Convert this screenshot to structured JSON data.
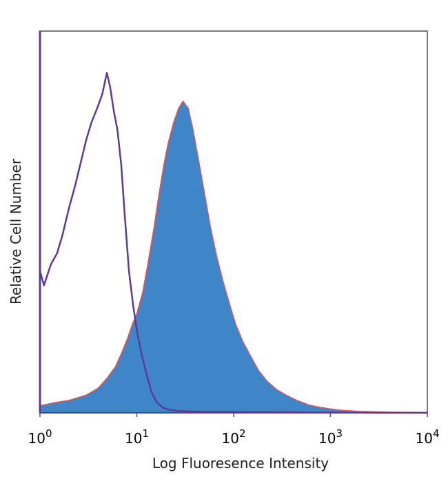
{
  "chart_data": {
    "type": "area",
    "title": "",
    "xlabel": "Log Fluoresence Intensity",
    "ylabel": "Relative Cell Number",
    "x_scale": "log",
    "xlim": [
      1,
      10000
    ],
    "ylim": [
      0,
      100
    ],
    "grid": false,
    "x_ticks": [
      {
        "value": 1,
        "base": "10",
        "exp": "0"
      },
      {
        "value": 10,
        "base": "10",
        "exp": "1"
      },
      {
        "value": 100,
        "base": "10",
        "exp": "2"
      },
      {
        "value": 1000,
        "base": "10",
        "exp": "3"
      },
      {
        "value": 10000,
        "base": "10",
        "exp": "4"
      }
    ],
    "colors": {
      "filled_fill": "#3f86c8",
      "filled_edge": "#e0535a",
      "outline": "#5b3a9a"
    },
    "series": [
      {
        "style": "outline",
        "color": "#5b3a9a",
        "x": [
          1.0,
          1.1,
          1.3,
          1.5,
          1.7,
          2.0,
          2.3,
          2.6,
          3.0,
          3.4,
          3.9,
          4.4,
          4.9,
          5.3,
          5.8,
          6.3,
          6.9,
          7.5,
          8.3,
          9.2,
          10.2,
          11.3,
          12.6,
          14.1,
          16.0,
          18.5,
          22,
          27,
          35,
          50,
          80,
          150,
          300,
          600,
          1200,
          3000,
          10000
        ],
        "y": [
          40,
          36,
          42,
          45,
          50,
          58,
          64,
          70,
          77,
          82,
          86,
          90,
          96,
          92,
          85,
          80,
          70,
          56,
          40,
          30,
          22,
          16,
          11,
          6,
          3,
          1.5,
          0.8,
          0.5,
          0.4,
          0.3,
          0.3,
          0.2,
          0.2,
          0.1,
          0.1,
          0,
          0
        ]
      },
      {
        "style": "filled",
        "color": "#3f86c8",
        "x": [
          1.0,
          1.5,
          2.0,
          3.0,
          4.0,
          5.0,
          6.0,
          7.0,
          8.0,
          9.0,
          10.0,
          11.5,
          13.0,
          15.0,
          17.0,
          19.0,
          21.0,
          24.0,
          27.0,
          30.0,
          34.0,
          38.0,
          43.0,
          50.0,
          58.0,
          67.0,
          78.0,
          90.0,
          105,
          125,
          150,
          180,
          220,
          280,
          350,
          450,
          600,
          800,
          1200,
          2000,
          4000,
          10000
        ],
        "y": [
          2,
          3,
          3.5,
          5,
          7,
          10,
          13,
          17,
          21,
          25,
          28,
          34,
          42,
          52,
          62,
          70,
          76,
          82,
          86,
          88,
          86,
          80,
          72,
          62,
          52,
          44,
          37,
          31,
          25,
          20,
          16,
          12,
          9,
          6.5,
          5,
          3.5,
          2.2,
          1.5,
          0.8,
          0.4,
          0.2,
          0.1
        ]
      }
    ]
  }
}
